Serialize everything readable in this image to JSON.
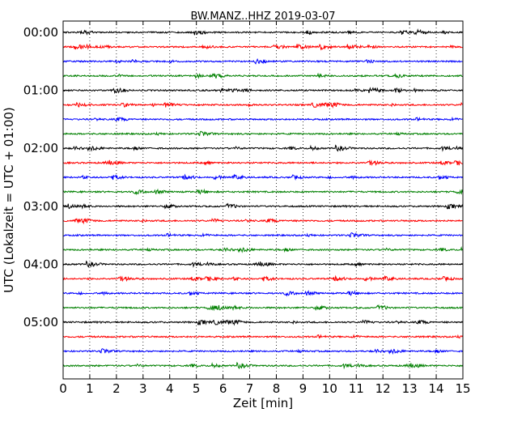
{
  "chart_data": {
    "type": "line",
    "title": "BW.MANZ..HHZ 2019-03-07",
    "xlabel": "Zeit  [min]",
    "ylabel": "UTC (Lokalzeit = UTC + 01:00)",
    "xlim": [
      0,
      15
    ],
    "x_ticks": [
      "0",
      "1",
      "2",
      "3",
      "4",
      "5",
      "6",
      "7",
      "8",
      "9",
      "10",
      "11",
      "12",
      "13",
      "14",
      "15"
    ],
    "y_tick_labels": [
      "00:00",
      "01:00",
      "02:00",
      "03:00",
      "04:00",
      "05:00"
    ],
    "trace_minutes_per_line": 15,
    "trace_count": 24,
    "trace_colors": [
      "#000000",
      "#ff0000",
      "#0000ff",
      "#008000"
    ],
    "vertical_grid": "dotted at each minute",
    "series_description": "seismogram traces, one per 15-minute interval, cycling black/red/blue/green"
  }
}
